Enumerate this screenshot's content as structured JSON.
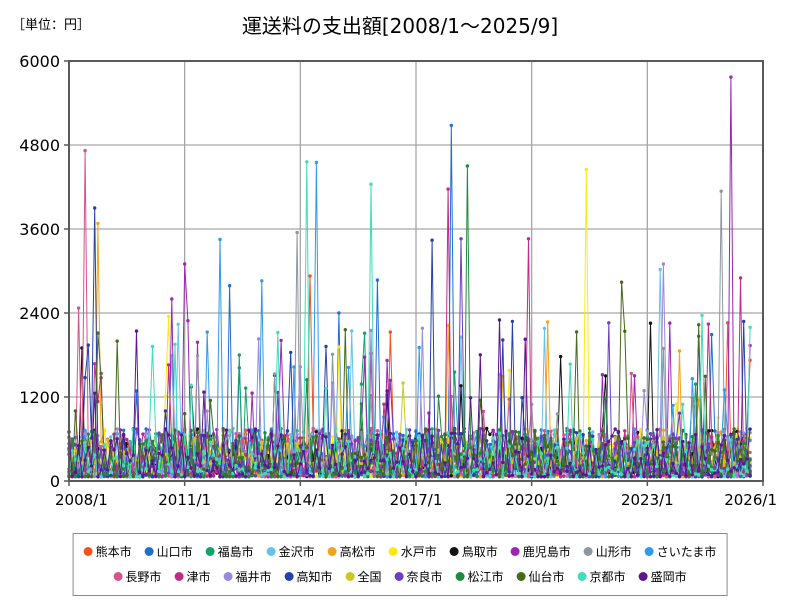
{
  "title": "運送料の支出額[2008/1～2025/9]",
  "unit_label": "［単位：円］",
  "colors": {
    "background": "#FFFFFF",
    "plot_border": "#595959",
    "grid": "#A6A6A6",
    "text": "#000000",
    "legend_border": "#8A8A8A"
  },
  "chart_data": {
    "type": "line",
    "title": "運送料の支出額[2008/1～2025/9]",
    "unit": "円",
    "x_start": "2008/1",
    "x_end_of_data": "2025/9",
    "x_axis_end": "2026/1",
    "months_on_axis": 216,
    "months_with_data": 213,
    "ylim": [
      0,
      6000
    ],
    "y_ticks": [
      "0",
      "1200",
      "2400",
      "3600",
      "4800",
      "6000"
    ],
    "x_ticks": [
      "2008/1",
      "2011/1",
      "2014/1",
      "2017/1",
      "2020/1",
      "2023/1",
      "2026/1"
    ],
    "grid": true,
    "legend_position": "bottom",
    "marker": "circle",
    "note": "20 overlapping monthly series of dense low-amplitude noise (mostly 50-900 yen) with sporadic spikes; per-month values are unreadable in the source image, so the baseline is regenerated from the seeded noise model below, while 'peaks' lists the prominent spikes read directly off the plot (month, yen).",
    "noise_model": {
      "seed": 20080101,
      "base_min": 60,
      "base_max": 750,
      "spike_prob": 0.035,
      "spike_min": 900,
      "spike_max": 2400
    },
    "series": [
      {
        "name": "熊本市",
        "color": "#F4511E",
        "peaks": [
          {
            "m": "2014/4",
            "v": 2930
          },
          {
            "m": "2025/2",
            "v": 2260
          }
        ]
      },
      {
        "name": "山口市",
        "color": "#1E6FD2",
        "peaks": [
          {
            "m": "2012/3",
            "v": 2790
          },
          {
            "m": "2015/1",
            "v": 2400
          },
          {
            "m": "2016/1",
            "v": 2870
          },
          {
            "m": "2017/12",
            "v": 5080
          }
        ]
      },
      {
        "name": "福島市",
        "color": "#12A36C",
        "peaks": [
          {
            "m": "2012/6",
            "v": 1800
          }
        ]
      },
      {
        "name": "金沢市",
        "color": "#66C2EA",
        "peaks": [
          {
            "m": "2020/5",
            "v": 2180
          },
          {
            "m": "2023/5",
            "v": 3020
          }
        ]
      },
      {
        "name": "高松市",
        "color": "#F2A41C",
        "peaks": [
          {
            "m": "2008/10",
            "v": 3680
          }
        ]
      },
      {
        "name": "水戸市",
        "color": "#FFE814",
        "peaks": [
          {
            "m": "2021/6",
            "v": 4450
          }
        ]
      },
      {
        "name": "鳥取市",
        "color": "#141414",
        "peaks": [
          {
            "m": "2008/5",
            "v": 1900
          }
        ]
      },
      {
        "name": "鹿児島市",
        "color": "#9C27B0",
        "peaks": [
          {
            "m": "2010/9",
            "v": 2600
          },
          {
            "m": "2011/1",
            "v": 3100
          },
          {
            "m": "2025/3",
            "v": 5770
          }
        ]
      },
      {
        "name": "山形市",
        "color": "#8E979E",
        "peaks": [
          {
            "m": "2013/12",
            "v": 3550
          },
          {
            "m": "2024/12",
            "v": 4140
          }
        ]
      },
      {
        "name": "さいたま市",
        "color": "#2D9BE8",
        "peaks": [
          {
            "m": "2011/12",
            "v": 3450
          },
          {
            "m": "2013/1",
            "v": 2860
          },
          {
            "m": "2014/6",
            "v": 4550
          }
        ]
      },
      {
        "name": "長野市",
        "color": "#D4548C",
        "peaks": [
          {
            "m": "2008/4",
            "v": 2470
          },
          {
            "m": "2008/6",
            "v": 4720
          }
        ]
      },
      {
        "name": "津市",
        "color": "#C02B8A",
        "peaks": [
          {
            "m": "2017/11",
            "v": 4170
          },
          {
            "m": "2019/12",
            "v": 3460
          },
          {
            "m": "2025/6",
            "v": 2900
          }
        ]
      },
      {
        "name": "福井市",
        "color": "#9B8AD8",
        "peaks": [
          {
            "m": "2023/6",
            "v": 3100
          }
        ]
      },
      {
        "name": "高知市",
        "color": "#2641A5",
        "peaks": [
          {
            "m": "2008/9",
            "v": 3900
          },
          {
            "m": "2017/6",
            "v": 3440
          },
          {
            "m": "2019/7",
            "v": 2280
          },
          {
            "m": "2025/7",
            "v": 2280
          }
        ]
      },
      {
        "name": "全国",
        "color": "#C9C920",
        "peaks": [],
        "noise_override": {
          "base_min": 250,
          "base_max": 620,
          "spike_prob": 0.004
        }
      },
      {
        "name": "奈良市",
        "color": "#6A3FC0",
        "peaks": [
          {
            "m": "2018/3",
            "v": 3460
          },
          {
            "m": "2022/1",
            "v": 2260
          }
        ]
      },
      {
        "name": "松江市",
        "color": "#1E8A3C",
        "peaks": [
          {
            "m": "2018/5",
            "v": 4500
          }
        ]
      },
      {
        "name": "仙台市",
        "color": "#46691C",
        "peaks": [
          {
            "m": "2021/3",
            "v": 2130
          },
          {
            "m": "2022/5",
            "v": 2840
          }
        ]
      },
      {
        "name": "京都市",
        "color": "#3FDDB8",
        "peaks": [
          {
            "m": "2014/3",
            "v": 4560
          },
          {
            "m": "2015/11",
            "v": 4240
          }
        ]
      },
      {
        "name": "盛岡市",
        "color": "#5A1890",
        "peaks": [
          {
            "m": "2019/3",
            "v": 2300
          }
        ]
      }
    ]
  }
}
